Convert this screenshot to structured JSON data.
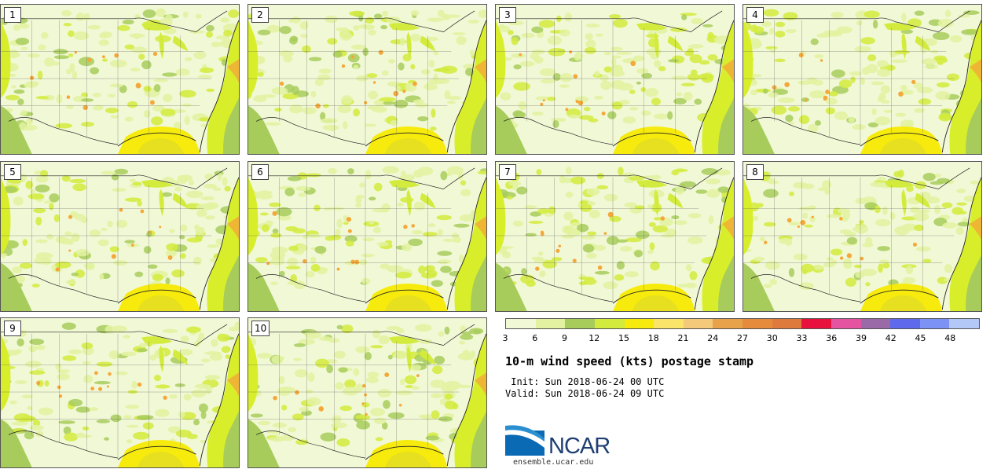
{
  "panels": [
    {
      "label": "1"
    },
    {
      "label": "2"
    },
    {
      "label": "3"
    },
    {
      "label": "4"
    },
    {
      "label": "5"
    },
    {
      "label": "6"
    },
    {
      "label": "7"
    },
    {
      "label": "8"
    },
    {
      "label": "9"
    },
    {
      "label": "10"
    }
  ],
  "colorbar": {
    "colors": [
      "#f1f8d6",
      "#e2f2a0",
      "#a8cc5c",
      "#d3eb3c",
      "#f6eb0c",
      "#fae46a",
      "#f5c97a",
      "#e8a24a",
      "#e68a3c",
      "#de7a3c",
      "#e8103c",
      "#e454a0",
      "#9a6aa8",
      "#5e6aeb",
      "#7c92f5",
      "#b4c8f8"
    ],
    "tick_labels": [
      "3",
      "6",
      "9",
      "12",
      "15",
      "18",
      "21",
      "24",
      "27",
      "30",
      "33",
      "36",
      "39",
      "42",
      "45",
      "48"
    ]
  },
  "title": "10-m wind speed (kts) postage stamp",
  "init": " Init: Sun 2018-06-24 00 UTC",
  "valid": "Valid: Sun 2018-06-24 09 UTC",
  "logo_text": "NCAR",
  "site": "ensemble.ucar.edu"
}
